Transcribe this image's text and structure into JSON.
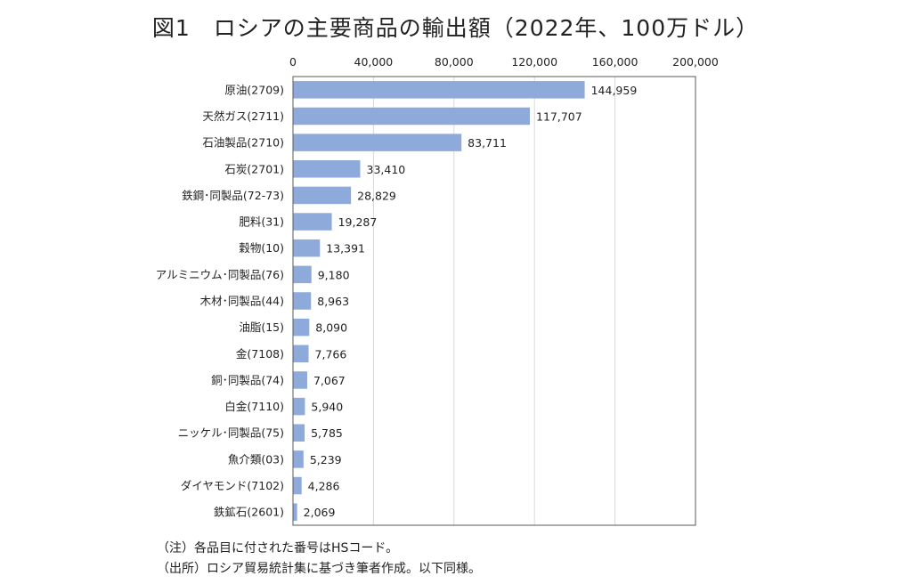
{
  "title": "図1　ロシアの主要商品の輸出額（2022年、100万ドル）",
  "notes": [
    "（注）各品目に付された番号はHSコード。",
    "（出所）ロシア貿易統計集に基づき筆者作成。以下同様。"
  ],
  "chart_data": {
    "type": "bar",
    "orientation": "horizontal",
    "title": "図1　ロシアの主要商品の輸出額（2022年、100万ドル）",
    "categories": [
      "原油(2709)",
      "天然ガス(2711)",
      "石油製品(2710)",
      "石炭(2701)",
      "鉄鋼･同製品(72-73)",
      "肥料(31)",
      "穀物(10)",
      "アルミニウム･同製品(76)",
      "木材･同製品(44)",
      "油脂(15)",
      "金(7108)",
      "銅･同製品(74)",
      "白金(7110)",
      "ニッケル･同製品(75)",
      "魚介類(03)",
      "ダイヤモンド(7102)",
      "鉄鉱石(2601)"
    ],
    "values": [
      144959,
      117707,
      83711,
      33410,
      28829,
      19287,
      13391,
      9180,
      8963,
      8090,
      7766,
      7067,
      5940,
      5785,
      5239,
      4286,
      2069
    ],
    "value_labels": [
      "144,959",
      "117,707",
      "83,711",
      "33,410",
      "28,829",
      "19,287",
      "13,391",
      "9,180",
      "8,963",
      "8,090",
      "7,766",
      "7,067",
      "5,940",
      "5,785",
      "5,239",
      "4,286",
      "2,069"
    ],
    "xlim": [
      0,
      200000
    ],
    "xticks": [
      0,
      40000,
      80000,
      120000,
      160000,
      200000
    ],
    "xtick_labels": [
      "0",
      "40,000",
      "80,000",
      "120,000",
      "160,000",
      "200,000"
    ],
    "axis_position": "top",
    "grid": true,
    "bar_color": "#8eaadb"
  }
}
